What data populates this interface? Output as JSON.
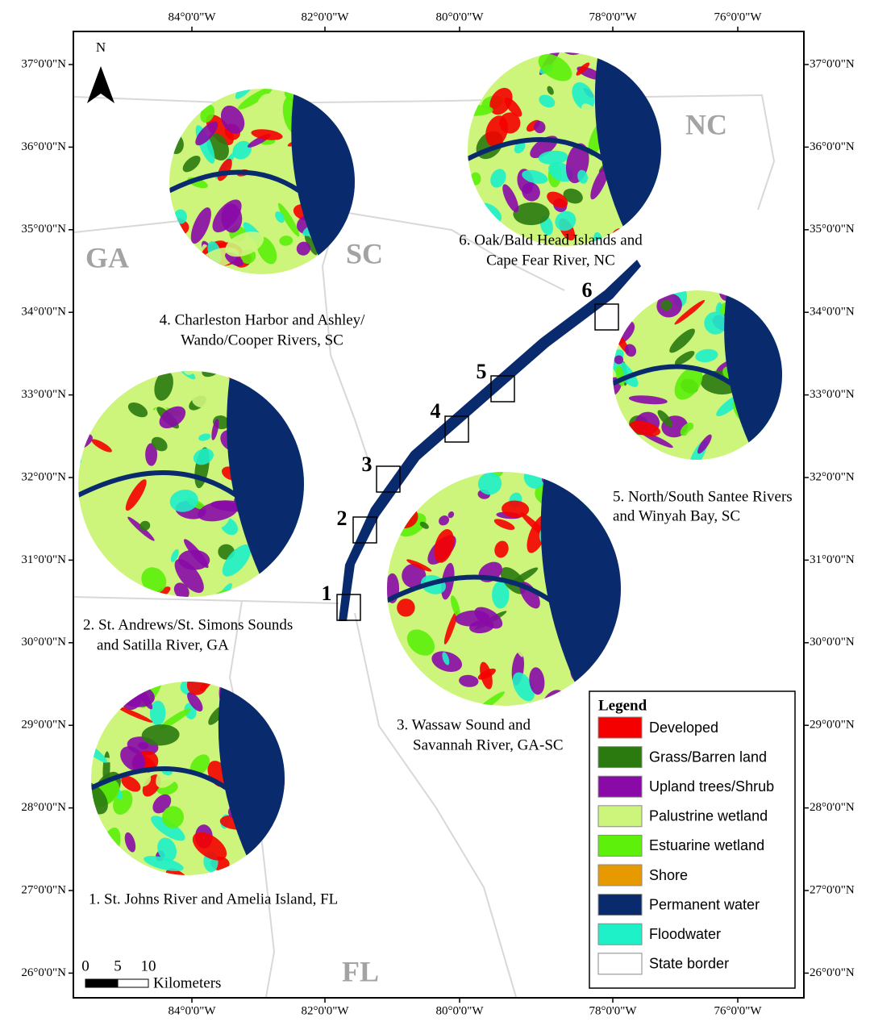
{
  "north_arrow": "N",
  "longitude_labels": [
    "84°0'0\"W",
    "82°0'0\"W",
    "80°0'0\"W",
    "78°0'0\"W",
    "76°0'0\"W"
  ],
  "latitude_labels": [
    "37°0'0\"N",
    "36°0'0\"N",
    "35°0'0\"N",
    "34°0'0\"N",
    "33°0'0\"N",
    "32°0'0\"N",
    "31°0'0\"N",
    "30°0'0\"N",
    "29°0'0\"N",
    "28°0'0\"N",
    "27°0'0\"N",
    "26°0'0\"N"
  ],
  "state_labels": [
    "NC",
    "SC",
    "GA",
    "FL"
  ],
  "site_numbers": [
    "1",
    "2",
    "3",
    "4",
    "5",
    "6"
  ],
  "site_captions": [
    {
      "lines": [
        "1. St. Johns River and Amelia Island, FL"
      ]
    },
    {
      "lines": [
        "2. St. Andrews/St. Simons Sounds",
        "and Satilla River, GA"
      ]
    },
    {
      "lines": [
        "3. Wassaw Sound and",
        "Savannah River, GA-SC"
      ]
    },
    {
      "lines": [
        "4. Charleston Harbor and Ashley/",
        "Wando/Cooper Rivers, SC"
      ]
    },
    {
      "lines": [
        "5. North/South Santee Rivers",
        "and Winyah Bay, SC"
      ]
    },
    {
      "lines": [
        "6. Oak/Bald Head Islands and",
        "Cape Fear River, NC"
      ]
    }
  ],
  "legend": {
    "title": "Legend",
    "items": [
      {
        "label": "Developed",
        "color": "#f50000"
      },
      {
        "label": "Grass/Barren land",
        "color": "#2b7a10"
      },
      {
        "label": "Upland trees/Shrub",
        "color": "#8a0aa8"
      },
      {
        "label": "Palustrine wetland",
        "color": "#cdf57c"
      },
      {
        "label": "Estuarine wetland",
        "color": "#5cf00a"
      },
      {
        "label": "Shore",
        "color": "#e69a00"
      },
      {
        "label": "Permanent water",
        "color": "#0a2a6e"
      },
      {
        "label": "Floodwater",
        "color": "#1ef0c8"
      },
      {
        "label": "State border",
        "color": "#ffffff"
      }
    ]
  },
  "scale_bar": {
    "ticks": [
      "0",
      "5",
      "10"
    ],
    "unit": "Kilometers"
  }
}
